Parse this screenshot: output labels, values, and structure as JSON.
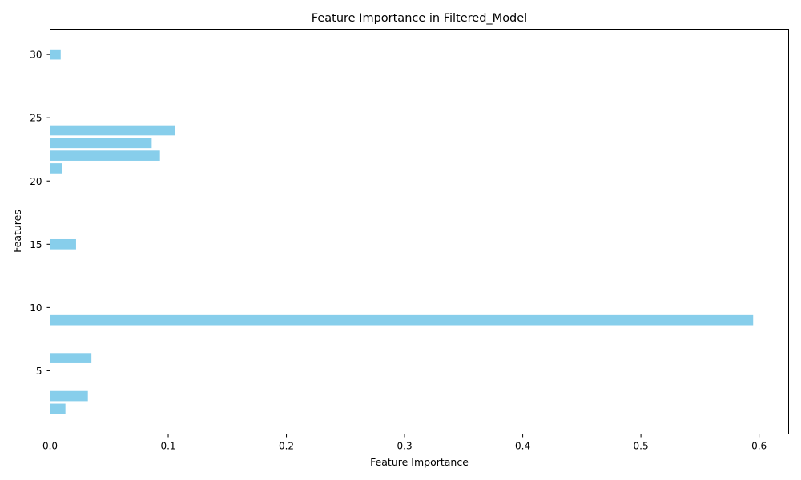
{
  "chart_data": {
    "type": "bar",
    "orientation": "horizontal",
    "title": "Feature Importance in Filtered_Model",
    "xlabel": "Feature Importance",
    "ylabel": "Features",
    "xlim": [
      0,
      0.625
    ],
    "ylim": [
      0,
      32
    ],
    "xticks": [
      0.0,
      0.1,
      0.2,
      0.3,
      0.4,
      0.5,
      0.6
    ],
    "xtick_labels": [
      "0.0",
      "0.1",
      "0.2",
      "0.3",
      "0.4",
      "0.5",
      "0.6"
    ],
    "yticks": [
      5,
      10,
      15,
      20,
      25,
      30
    ],
    "ytick_labels": [
      "5",
      "10",
      "15",
      "20",
      "25",
      "30"
    ],
    "grid": false,
    "bar_color": "#87ceeb",
    "categories": [
      2,
      3,
      6,
      9,
      15,
      21,
      22,
      23,
      24,
      30
    ],
    "values": [
      0.013,
      0.032,
      0.035,
      0.595,
      0.022,
      0.01,
      0.093,
      0.086,
      0.106,
      0.009
    ]
  }
}
